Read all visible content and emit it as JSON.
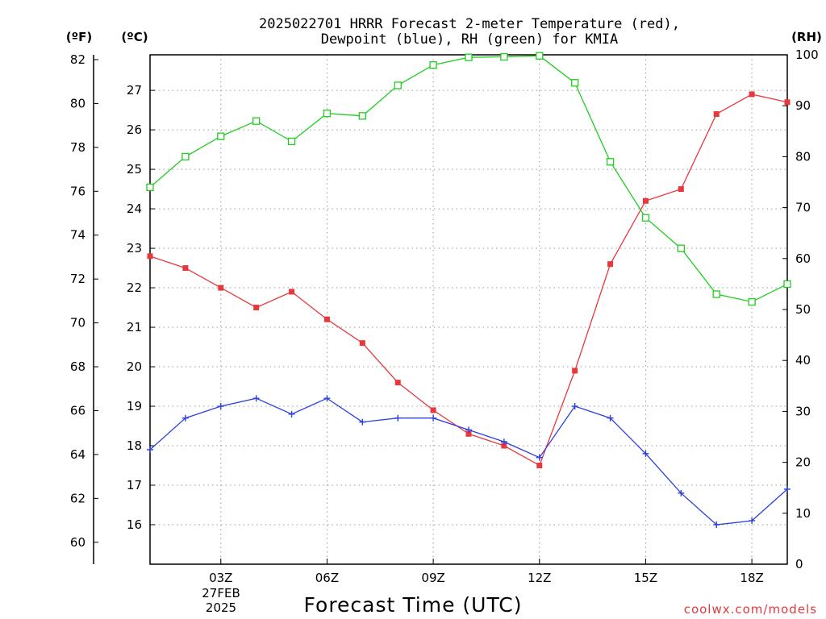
{
  "title_line1": "2025022701 HRRR Forecast 2-meter Temperature (red),",
  "title_line2": "Dewpoint (blue), RH (green) for KMIA",
  "unit_f": "(ºF)",
  "unit_c": "(ºC)",
  "unit_rh": "(RH)",
  "xlabel": "Forecast Time (UTC)",
  "credit": "coolwx.com/models",
  "date_line1": "27FEB",
  "date_line2": "2025",
  "colors": {
    "temperature": "#e8383d",
    "dewpoint": "#2c3fe0",
    "rh": "#22cc22"
  },
  "chart_data": {
    "type": "line",
    "x": [
      "01Z",
      "02Z",
      "03Z",
      "04Z",
      "05Z",
      "06Z",
      "07Z",
      "08Z",
      "09Z",
      "10Z",
      "11Z",
      "12Z",
      "13Z",
      "14Z",
      "15Z",
      "16Z",
      "17Z",
      "18Z",
      "19Z"
    ],
    "x_tick_labels": [
      "03Z",
      "06Z",
      "09Z",
      "12Z",
      "15Z",
      "18Z"
    ],
    "x_tick_positions": [
      "03Z",
      "06Z",
      "09Z",
      "12Z",
      "15Z",
      "18Z"
    ],
    "y_celsius_ticks": [
      16,
      17,
      18,
      19,
      20,
      21,
      22,
      23,
      24,
      25,
      26,
      27
    ],
    "y_fahrenheit_ticks": [
      60,
      62,
      64,
      66,
      68,
      70,
      72,
      74,
      76,
      78,
      80,
      82
    ],
    "y_rh_ticks": [
      0,
      10,
      20,
      30,
      40,
      50,
      60,
      70,
      80,
      90,
      100
    ],
    "ylim_celsius": [
      15.0,
      27.9
    ],
    "ylim_rh": [
      0,
      100
    ],
    "grid": true,
    "series": [
      {
        "name": "Temperature",
        "axis": "celsius",
        "marker": "filled-square",
        "values": [
          22.8,
          22.5,
          22.0,
          21.5,
          21.9,
          21.2,
          20.6,
          19.6,
          18.9,
          18.3,
          18.0,
          17.5,
          19.9,
          22.6,
          24.2,
          24.5,
          26.4,
          26.9,
          26.7
        ]
      },
      {
        "name": "Dewpoint",
        "axis": "celsius",
        "marker": "plus",
        "values": [
          17.9,
          18.7,
          19.0,
          19.2,
          18.8,
          19.2,
          18.6,
          18.7,
          18.7,
          18.4,
          18.1,
          17.7,
          19.0,
          18.7,
          17.8,
          16.8,
          16.0,
          16.1,
          16.9
        ]
      },
      {
        "name": "RH",
        "axis": "rh",
        "marker": "open-square",
        "values": [
          74,
          80,
          84,
          87,
          83,
          88.5,
          88,
          94,
          98,
          99.5,
          99.6,
          99.8,
          94.5,
          79,
          68,
          62,
          53,
          51.5,
          55
        ]
      }
    ]
  }
}
